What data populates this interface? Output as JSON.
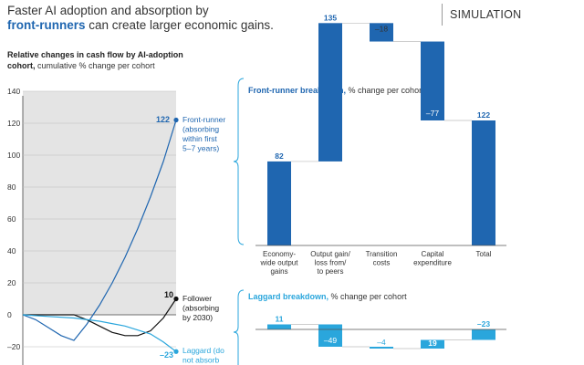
{
  "header": {
    "title_line1": "Faster AI adoption and absorption by",
    "title_accent": "front-runners",
    "title_line2_rest": " can create larger economic gains.",
    "badge": "SIMULATION"
  },
  "left_chart": {
    "subtitle_bold": "cohort,",
    "subtitle_line1": "Relative changes in cash flow by AI-adoption",
    "subtitle_rest": " cumulative % change per cohort"
  },
  "front_runner_panel": {
    "title_bold": "Front-runner breakdown,",
    "title_rest": " % change per cohort"
  },
  "laggard_panel": {
    "title_bold": "Laggard breakdown,",
    "title_rest": " % change per cohort"
  },
  "colors": {
    "front_runner": "#1f66b0",
    "follower": "#111111",
    "laggard": "#2aa6dc",
    "shade": "#e4e4e4"
  },
  "chart_data": [
    {
      "type": "line",
      "yaxis_ticks": [
        140,
        120,
        100,
        80,
        60,
        40,
        20,
        0,
        -20
      ],
      "ylim": [
        -20,
        140
      ],
      "series": [
        {
          "name": "Front-runner",
          "label_lines": [
            "Front-runner",
            "(absorbing",
            "within first",
            "5–7 years)"
          ],
          "end_value": "122",
          "points": [
            [
              0,
              0
            ],
            [
              5,
              -3
            ],
            [
              10,
              -8
            ],
            [
              15,
              -13
            ],
            [
              20,
              -16
            ],
            [
              25,
              -6
            ],
            [
              30,
              6
            ],
            [
              35,
              20
            ],
            [
              40,
              36
            ],
            [
              45,
              54
            ],
            [
              50,
              74
            ],
            [
              55,
              96
            ],
            [
              60,
              122
            ]
          ]
        },
        {
          "name": "Follower",
          "label_lines": [
            "Follower",
            "(absorbing",
            "by 2030)"
          ],
          "end_value": "10",
          "points": [
            [
              0,
              0
            ],
            [
              10,
              0
            ],
            [
              20,
              0
            ],
            [
              25,
              -3
            ],
            [
              30,
              -7
            ],
            [
              35,
              -11
            ],
            [
              40,
              -13
            ],
            [
              45,
              -13
            ],
            [
              50,
              -10
            ],
            [
              55,
              -2
            ],
            [
              60,
              10
            ]
          ]
        },
        {
          "name": "Laggard",
          "label_lines": [
            "Laggard (do",
            "not absorb"
          ],
          "end_value": "–23",
          "points": [
            [
              0,
              0
            ],
            [
              10,
              -1
            ],
            [
              20,
              -2
            ],
            [
              30,
              -4
            ],
            [
              40,
              -7
            ],
            [
              50,
              -12
            ],
            [
              55,
              -17
            ],
            [
              60,
              -23
            ]
          ]
        }
      ]
    },
    {
      "type": "bar",
      "title": "Front-runner breakdown, % change per cohort",
      "categories": [
        [
          "Economy-",
          "wide output",
          "gains"
        ],
        [
          "Output gain/",
          "loss from/",
          "to peers"
        ],
        [
          "Transition",
          "costs"
        ],
        [
          "Capital",
          "expenditure"
        ],
        [
          "Total"
        ]
      ],
      "values": [
        82,
        135,
        -18,
        -77,
        122
      ],
      "labels": [
        "82",
        "135",
        "–18",
        "–77",
        "122"
      ],
      "waterfall": true
    },
    {
      "type": "bar",
      "title": "Laggard breakdown, % change per cohort",
      "values": [
        11,
        -49,
        -4,
        19,
        -23
      ],
      "labels": [
        "11",
        "–49",
        "–4",
        "19",
        "–23"
      ],
      "waterfall": true
    }
  ]
}
